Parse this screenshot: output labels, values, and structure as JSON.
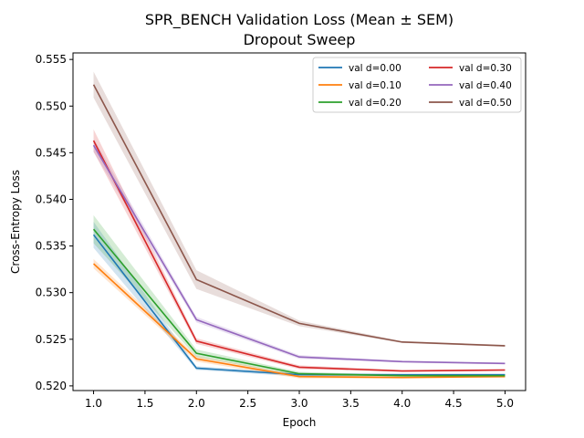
{
  "chart_data": {
    "type": "line",
    "title": "SPR_BENCH Validation Loss (Mean ± SEM)",
    "subtitle": "Dropout Sweep",
    "xlabel": "Epoch",
    "ylabel": "Cross-Entropy Loss",
    "xlim": [
      0.8,
      5.2
    ],
    "ylim": [
      0.5195,
      0.5557
    ],
    "xticks": [
      "1.0",
      "1.5",
      "2.0",
      "2.5",
      "3.0",
      "3.5",
      "4.0",
      "4.5",
      "5.0"
    ],
    "yticks": [
      "0.520",
      "0.525",
      "0.530",
      "0.535",
      "0.540",
      "0.545",
      "0.550",
      "0.555"
    ],
    "grid": false,
    "legend_position": "top-right",
    "x": [
      1,
      2,
      3,
      4,
      5
    ],
    "series": [
      {
        "name": "val d=0.00",
        "color": "#1f77b4",
        "values": [
          0.5362,
          0.5219,
          0.5212,
          0.5212,
          0.5212
        ],
        "sem": [
          0.0014,
          0.0002,
          0.0002,
          0.0001,
          0.0001
        ]
      },
      {
        "name": "val d=0.10",
        "color": "#ff7f0e",
        "values": [
          0.5331,
          0.5229,
          0.521,
          0.5209,
          0.521
        ],
        "sem": [
          0.0005,
          0.0003,
          0.0002,
          0.0001,
          0.0001
        ]
      },
      {
        "name": "val d=0.20",
        "color": "#2ca02c",
        "values": [
          0.5368,
          0.5235,
          0.5213,
          0.5211,
          0.5211
        ],
        "sem": [
          0.0015,
          0.0004,
          0.0002,
          0.0001,
          0.0001
        ]
      },
      {
        "name": "val d=0.30",
        "color": "#d62728",
        "values": [
          0.5463,
          0.5248,
          0.522,
          0.5216,
          0.5217
        ],
        "sem": [
          0.0012,
          0.0003,
          0.0002,
          0.0001,
          0.0001
        ]
      },
      {
        "name": "val d=0.40",
        "color": "#9467bd",
        "values": [
          0.5458,
          0.5271,
          0.5231,
          0.5226,
          0.5224
        ],
        "sem": [
          0.0007,
          0.0003,
          0.0002,
          0.0001,
          0.0001
        ]
      },
      {
        "name": "val d=0.50",
        "color": "#8c564b",
        "values": [
          0.5523,
          0.5314,
          0.5267,
          0.5247,
          0.5243
        ],
        "sem": [
          0.0014,
          0.001,
          0.0003,
          0.0001,
          0.0001
        ]
      }
    ]
  }
}
